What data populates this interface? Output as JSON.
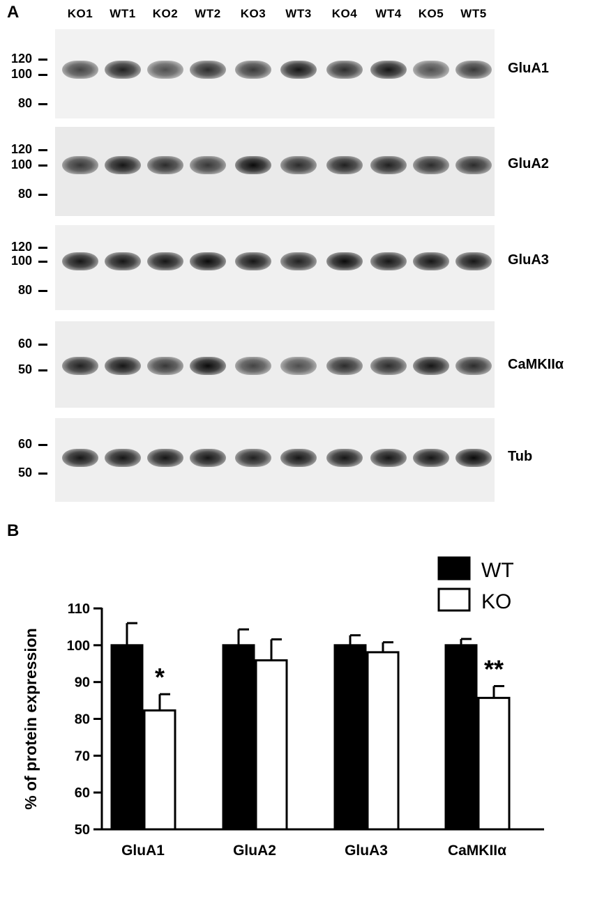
{
  "panel_a": {
    "letter": "A",
    "lanes": [
      "KO1",
      "WT1",
      "KO2",
      "WT2",
      "KO3",
      "WT3",
      "KO4",
      "WT4",
      "KO5",
      "WT5"
    ],
    "blots": [
      {
        "name": "GluA1",
        "markers": [
          "120",
          "100",
          "80"
        ],
        "bg": "#f2f2f2"
      },
      {
        "name": "GluA2",
        "markers": [
          "120",
          "100",
          "80"
        ],
        "bg": "#eaeaea"
      },
      {
        "name": "GluA3",
        "markers": [
          "120",
          "100",
          "80"
        ],
        "bg": "#f0f0f0"
      },
      {
        "name": "CaMKIIα",
        "markers": [
          "60",
          "50"
        ],
        "bg": "#ededed"
      },
      {
        "name": "Tub",
        "markers": [
          "60",
          "50"
        ],
        "bg": "#efefef"
      }
    ]
  },
  "panel_b": {
    "letter": "B"
  },
  "chart_data": {
    "type": "bar",
    "categories": [
      "GluA1",
      "GluA2",
      "GluA3",
      "CaMKIIα"
    ],
    "series": [
      {
        "name": "WT",
        "values": [
          100,
          100,
          100,
          100
        ],
        "errors": [
          6,
          4.3,
          2.7,
          1.7
        ],
        "color": "#000000"
      },
      {
        "name": "KO",
        "values": [
          82.3,
          95.9,
          98.1,
          85.7
        ],
        "errors": [
          4.4,
          5.7,
          2.7,
          3.2
        ],
        "color": "#ffffff"
      }
    ],
    "annotations": [
      "*",
      "",
      "",
      "**"
    ],
    "ylabel": "% of protein expression",
    "xlabel": "",
    "ylim": [
      50,
      110
    ],
    "yticks": [
      50,
      60,
      70,
      80,
      90,
      100,
      110
    ],
    "legend": "top-right",
    "grid": false
  }
}
